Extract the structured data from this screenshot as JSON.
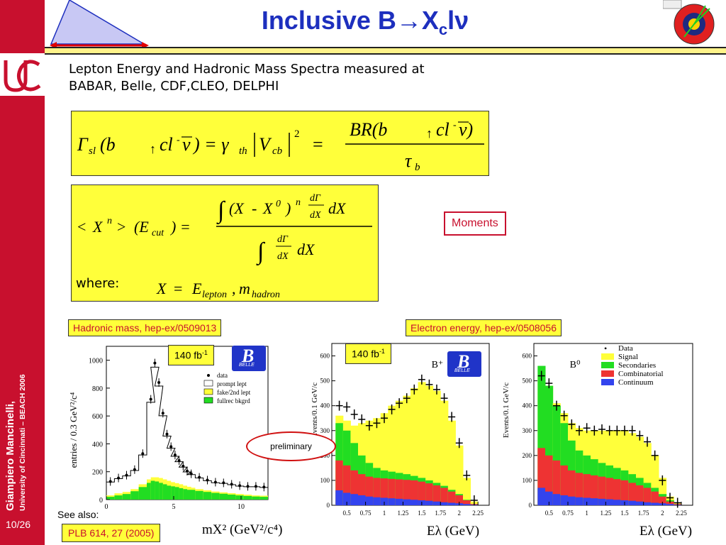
{
  "header": {
    "title_prefix": "Inclusive B",
    "title_arrow": "→",
    "title_x": "X",
    "title_c": "c",
    "title_suffix": "lν"
  },
  "sidebar": {
    "author_name": "Giampiero Mancinelli,",
    "affiliation": "University of Cincinnati – BEACH 2006",
    "slide_number": "10/26"
  },
  "intro": {
    "line1": "Lepton Energy and Hadronic Mass Spectra measured at",
    "line2": "BABAR, Belle, CDF,CLEO, DELPHI"
  },
  "equations": {
    "moments_label": "Moments",
    "where_label": "where:"
  },
  "plots": {
    "hadronic_tag": "Hadronic mass, hep-ex/0509013",
    "electron_tag": "Electron energy, hep-ex/0508056",
    "lum_left": "140 fb",
    "lum_right": "140 fb",
    "lum_exp": "-1",
    "preliminary": "preliminary",
    "see_also": "See also:",
    "reference": "PLB 614, 27 (2005)",
    "belle_word": "BELLE",
    "caption_mx": "mX² (GeV²/c⁴)",
    "caption_e1": "Eλ (GeV)",
    "caption_e2": "Eλ (GeV)"
  },
  "colors": {
    "accent": "#c8102e",
    "title": "#1d2fbe",
    "highlight": "#ffff3a",
    "signal": "#ffff3a",
    "secondaries": "#22dd22",
    "combinatorial": "#ee3333",
    "continuum": "#3344ee"
  },
  "chart_data": [
    {
      "type": "bar",
      "panel": "hadronic mass",
      "xlabel": "",
      "ylabel": "entries / 0.3 GeV²/c⁴",
      "xlim": [
        0,
        12
      ],
      "ylim": [
        0,
        1100
      ],
      "xticks": [
        0,
        5,
        10
      ],
      "yticks": [
        0,
        200,
        400,
        600,
        800,
        1000
      ],
      "legend": [
        "data",
        "prompt lept",
        "fake/2nd lept",
        "fullrec bkgrd"
      ],
      "x": [
        0.3,
        0.9,
        1.5,
        2.1,
        2.7,
        3.3,
        3.6,
        3.9,
        4.2,
        4.5,
        4.8,
        5.1,
        5.4,
        5.7,
        6.0,
        6.3,
        6.9,
        7.5,
        8.1,
        8.7,
        9.3,
        9.9,
        10.5,
        11.1,
        11.7
      ],
      "series": [
        {
          "name": "data",
          "values": [
            130,
            155,
            175,
            215,
            330,
            720,
            980,
            840,
            620,
            470,
            380,
            320,
            280,
            240,
            205,
            185,
            160,
            140,
            125,
            120,
            110,
            100,
            95,
            95,
            90
          ]
        },
        {
          "name": "fullrec bkgrd",
          "values": [
            20,
            30,
            40,
            60,
            90,
            120,
            135,
            130,
            120,
            110,
            100,
            95,
            90,
            82,
            75,
            70,
            62,
            55,
            48,
            42,
            36,
            30,
            26,
            22,
            20
          ]
        },
        {
          "name": "fake/2nd lept",
          "values": [
            30,
            45,
            55,
            75,
            110,
            145,
            160,
            155,
            145,
            135,
            125,
            118,
            110,
            100,
            92,
            85,
            75,
            67,
            58,
            52,
            46,
            40,
            35,
            30,
            28
          ]
        }
      ]
    },
    {
      "type": "bar",
      "panel": "B+ electron energy",
      "xlabel": "Eλ (GeV)",
      "ylabel": "Events/0.1 GeV/c",
      "label": "B⁺",
      "xlim": [
        0.3,
        2.4
      ],
      "ylim": [
        0,
        650
      ],
      "xticks": [
        0.5,
        0.75,
        1,
        1.25,
        1.5,
        1.75,
        2,
        2.25
      ],
      "yticks": [
        0,
        100,
        200,
        300,
        400,
        500,
        600
      ],
      "x": [
        0.4,
        0.5,
        0.6,
        0.7,
        0.8,
        0.9,
        1.0,
        1.1,
        1.2,
        1.3,
        1.4,
        1.5,
        1.6,
        1.7,
        1.8,
        1.9,
        2.0,
        2.1,
        2.2
      ],
      "series": [
        {
          "name": "Data",
          "values": [
            400,
            395,
            365,
            345,
            320,
            330,
            350,
            385,
            410,
            430,
            465,
            505,
            485,
            465,
            430,
            355,
            250,
            120,
            20
          ]
        },
        {
          "name": "Continuum",
          "values": [
            60,
            50,
            45,
            40,
            35,
            32,
            30,
            28,
            26,
            24,
            22,
            20,
            18,
            15,
            12,
            10,
            8,
            5,
            2
          ]
        },
        {
          "name": "Combinatorial",
          "values": [
            180,
            160,
            140,
            125,
            115,
            110,
            108,
            106,
            104,
            102,
            100,
            95,
            88,
            80,
            70,
            55,
            40,
            20,
            5
          ]
        },
        {
          "name": "Secondaries",
          "values": [
            330,
            300,
            250,
            200,
            170,
            150,
            140,
            135,
            130,
            125,
            118,
            110,
            100,
            90,
            78,
            62,
            45,
            22,
            5
          ]
        },
        {
          "name": "Signal",
          "values": [
            360,
            340,
            320,
            330,
            340,
            350,
            370,
            400,
            420,
            440,
            470,
            495,
            480,
            460,
            420,
            340,
            240,
            110,
            15
          ]
        }
      ]
    },
    {
      "type": "bar",
      "panel": "B0 electron energy",
      "xlabel": "Eλ (GeV)",
      "ylabel": "Events/0.1 GeV/c",
      "label": "B⁰",
      "xlim": [
        0.3,
        2.4
      ],
      "ylim": [
        0,
        650
      ],
      "xticks": [
        0.5,
        0.75,
        1,
        1.25,
        1.5,
        1.75,
        2,
        2.25
      ],
      "yticks": [
        0,
        100,
        200,
        300,
        400,
        500,
        600
      ],
      "legend": [
        "Data",
        "Signal",
        "Secondaries",
        "Combinatorial",
        "Continuum"
      ],
      "x": [
        0.4,
        0.5,
        0.6,
        0.7,
        0.8,
        0.9,
        1.0,
        1.1,
        1.2,
        1.3,
        1.4,
        1.5,
        1.6,
        1.7,
        1.8,
        1.9,
        2.0,
        2.1,
        2.2
      ],
      "series": [
        {
          "name": "Data",
          "values": [
            520,
            490,
            400,
            360,
            325,
            300,
            310,
            300,
            305,
            300,
            300,
            300,
            300,
            280,
            255,
            200,
            100,
            30,
            10
          ]
        },
        {
          "name": "Continuum",
          "values": [
            70,
            55,
            45,
            40,
            35,
            32,
            30,
            28,
            26,
            24,
            22,
            20,
            18,
            15,
            12,
            10,
            8,
            5,
            2
          ]
        },
        {
          "name": "Combinatorial",
          "values": [
            230,
            200,
            180,
            160,
            140,
            130,
            125,
            120,
            115,
            110,
            105,
            100,
            90,
            80,
            70,
            55,
            35,
            15,
            5
          ]
        },
        {
          "name": "Secondaries",
          "values": [
            560,
            480,
            400,
            330,
            260,
            220,
            200,
            185,
            170,
            160,
            150,
            140,
            125,
            110,
            90,
            70,
            45,
            20,
            5
          ]
        },
        {
          "name": "Signal",
          "values": [
            520,
            480,
            410,
            370,
            330,
            310,
            300,
            300,
            300,
            300,
            300,
            300,
            290,
            275,
            250,
            200,
            110,
            35,
            8
          ]
        }
      ]
    }
  ]
}
